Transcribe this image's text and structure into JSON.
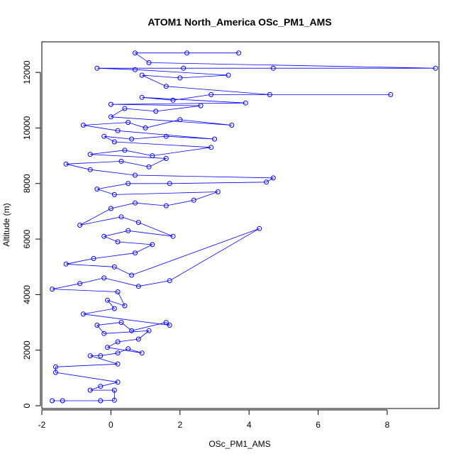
{
  "chart_data": {
    "type": "scatter",
    "title": "ATOM1 North_America OSc_PM1_AMS",
    "xlabel": "OSc_PM1_AMS",
    "ylabel": "Altitude (m)",
    "xlim": [
      -2,
      9.5
    ],
    "ylim": [
      -100,
      13100
    ],
    "x_ticks": [
      -2,
      0,
      2,
      4,
      6,
      8
    ],
    "y_ticks": [
      0,
      2000,
      4000,
      6000,
      8000,
      10000,
      12000
    ],
    "grid": false,
    "legend": "none",
    "marker": "open-circle",
    "connected": true,
    "color": "#0000ff",
    "series": [
      {
        "points": [
          [
            -1.7,
            180
          ],
          [
            -1.4,
            180
          ],
          [
            -0.3,
            180
          ],
          [
            0.1,
            200
          ],
          [
            0.1,
            560
          ],
          [
            -0.6,
            560
          ],
          [
            -0.3,
            700
          ],
          [
            0.2,
            850
          ],
          [
            -1.6,
            1200
          ],
          [
            -1.6,
            1400
          ],
          [
            0.2,
            1500
          ],
          [
            -0.6,
            1800
          ],
          [
            -0.3,
            1800
          ],
          [
            0.2,
            1900
          ],
          [
            0.5,
            2050
          ],
          [
            0.9,
            1900
          ],
          [
            -0.1,
            2100
          ],
          [
            0.2,
            2300
          ],
          [
            0.8,
            2400
          ],
          [
            1.1,
            2700
          ],
          [
            -0.2,
            2600
          ],
          [
            -0.4,
            2900
          ],
          [
            0.3,
            3000
          ],
          [
            0.6,
            2700
          ],
          [
            1.6,
            3000
          ],
          [
            1.7,
            2900
          ],
          [
            -0.8,
            3300
          ],
          [
            0.1,
            3500
          ],
          [
            -0.1,
            3800
          ],
          [
            0.4,
            3600
          ],
          [
            0.2,
            4100
          ],
          [
            -1.7,
            4200
          ],
          [
            -0.9,
            4400
          ],
          [
            -0.2,
            4600
          ],
          [
            0.8,
            4300
          ],
          [
            1.7,
            4500
          ],
          [
            4.3,
            6380
          ],
          [
            0.6,
            4700
          ],
          [
            0.1,
            5000
          ],
          [
            -1.3,
            5100
          ],
          [
            -0.5,
            5300
          ],
          [
            0.7,
            5500
          ],
          [
            1.2,
            5800
          ],
          [
            0.2,
            5900
          ],
          [
            -0.2,
            6100
          ],
          [
            0.5,
            6300
          ],
          [
            1.8,
            6100
          ],
          [
            0.8,
            6600
          ],
          [
            0.3,
            6800
          ],
          [
            -0.9,
            6500
          ],
          [
            0.0,
            7100
          ],
          [
            0.7,
            7300
          ],
          [
            1.6,
            7200
          ],
          [
            2.4,
            7400
          ],
          [
            3.1,
            7700
          ],
          [
            0.1,
            7600
          ],
          [
            -0.4,
            7800
          ],
          [
            0.5,
            8000
          ],
          [
            1.7,
            8000
          ],
          [
            4.5,
            8050
          ],
          [
            4.7,
            8200
          ],
          [
            0.7,
            8300
          ],
          [
            -0.6,
            8500
          ],
          [
            -1.3,
            8700
          ],
          [
            0.3,
            8800
          ],
          [
            1.1,
            8600
          ],
          [
            1.6,
            8900
          ],
          [
            -0.6,
            9050
          ],
          [
            0.4,
            9200
          ],
          [
            1.2,
            9000
          ],
          [
            2.9,
            9300
          ],
          [
            0.1,
            9500
          ],
          [
            -0.2,
            9700
          ],
          [
            0.6,
            9600
          ],
          [
            1.6,
            9700
          ],
          [
            3.0,
            9600
          ],
          [
            0.2,
            9900
          ],
          [
            -0.8,
            10100
          ],
          [
            0.5,
            10200
          ],
          [
            1.0,
            10000
          ],
          [
            2.0,
            10300
          ],
          [
            3.5,
            10100
          ],
          [
            0.0,
            10400
          ],
          [
            0.4,
            10700
          ],
          [
            1.3,
            10600
          ],
          [
            2.6,
            10800
          ],
          [
            0.0,
            10850
          ],
          [
            3.9,
            10900
          ],
          [
            0.9,
            11100
          ],
          [
            1.8,
            11000
          ],
          [
            2.9,
            11200
          ],
          [
            8.1,
            11200
          ],
          [
            4.6,
            11200
          ],
          [
            1.6,
            11500
          ],
          [
            0.9,
            11900
          ],
          [
            2.0,
            11800
          ],
          [
            3.4,
            11900
          ],
          [
            0.7,
            12100
          ],
          [
            -0.4,
            12150
          ],
          [
            2.1,
            12150
          ],
          [
            4.7,
            12150
          ],
          [
            9.4,
            12150
          ],
          [
            1.1,
            12350
          ],
          [
            0.7,
            12700
          ],
          [
            2.2,
            12700
          ],
          [
            3.7,
            12700
          ]
        ]
      }
    ]
  }
}
